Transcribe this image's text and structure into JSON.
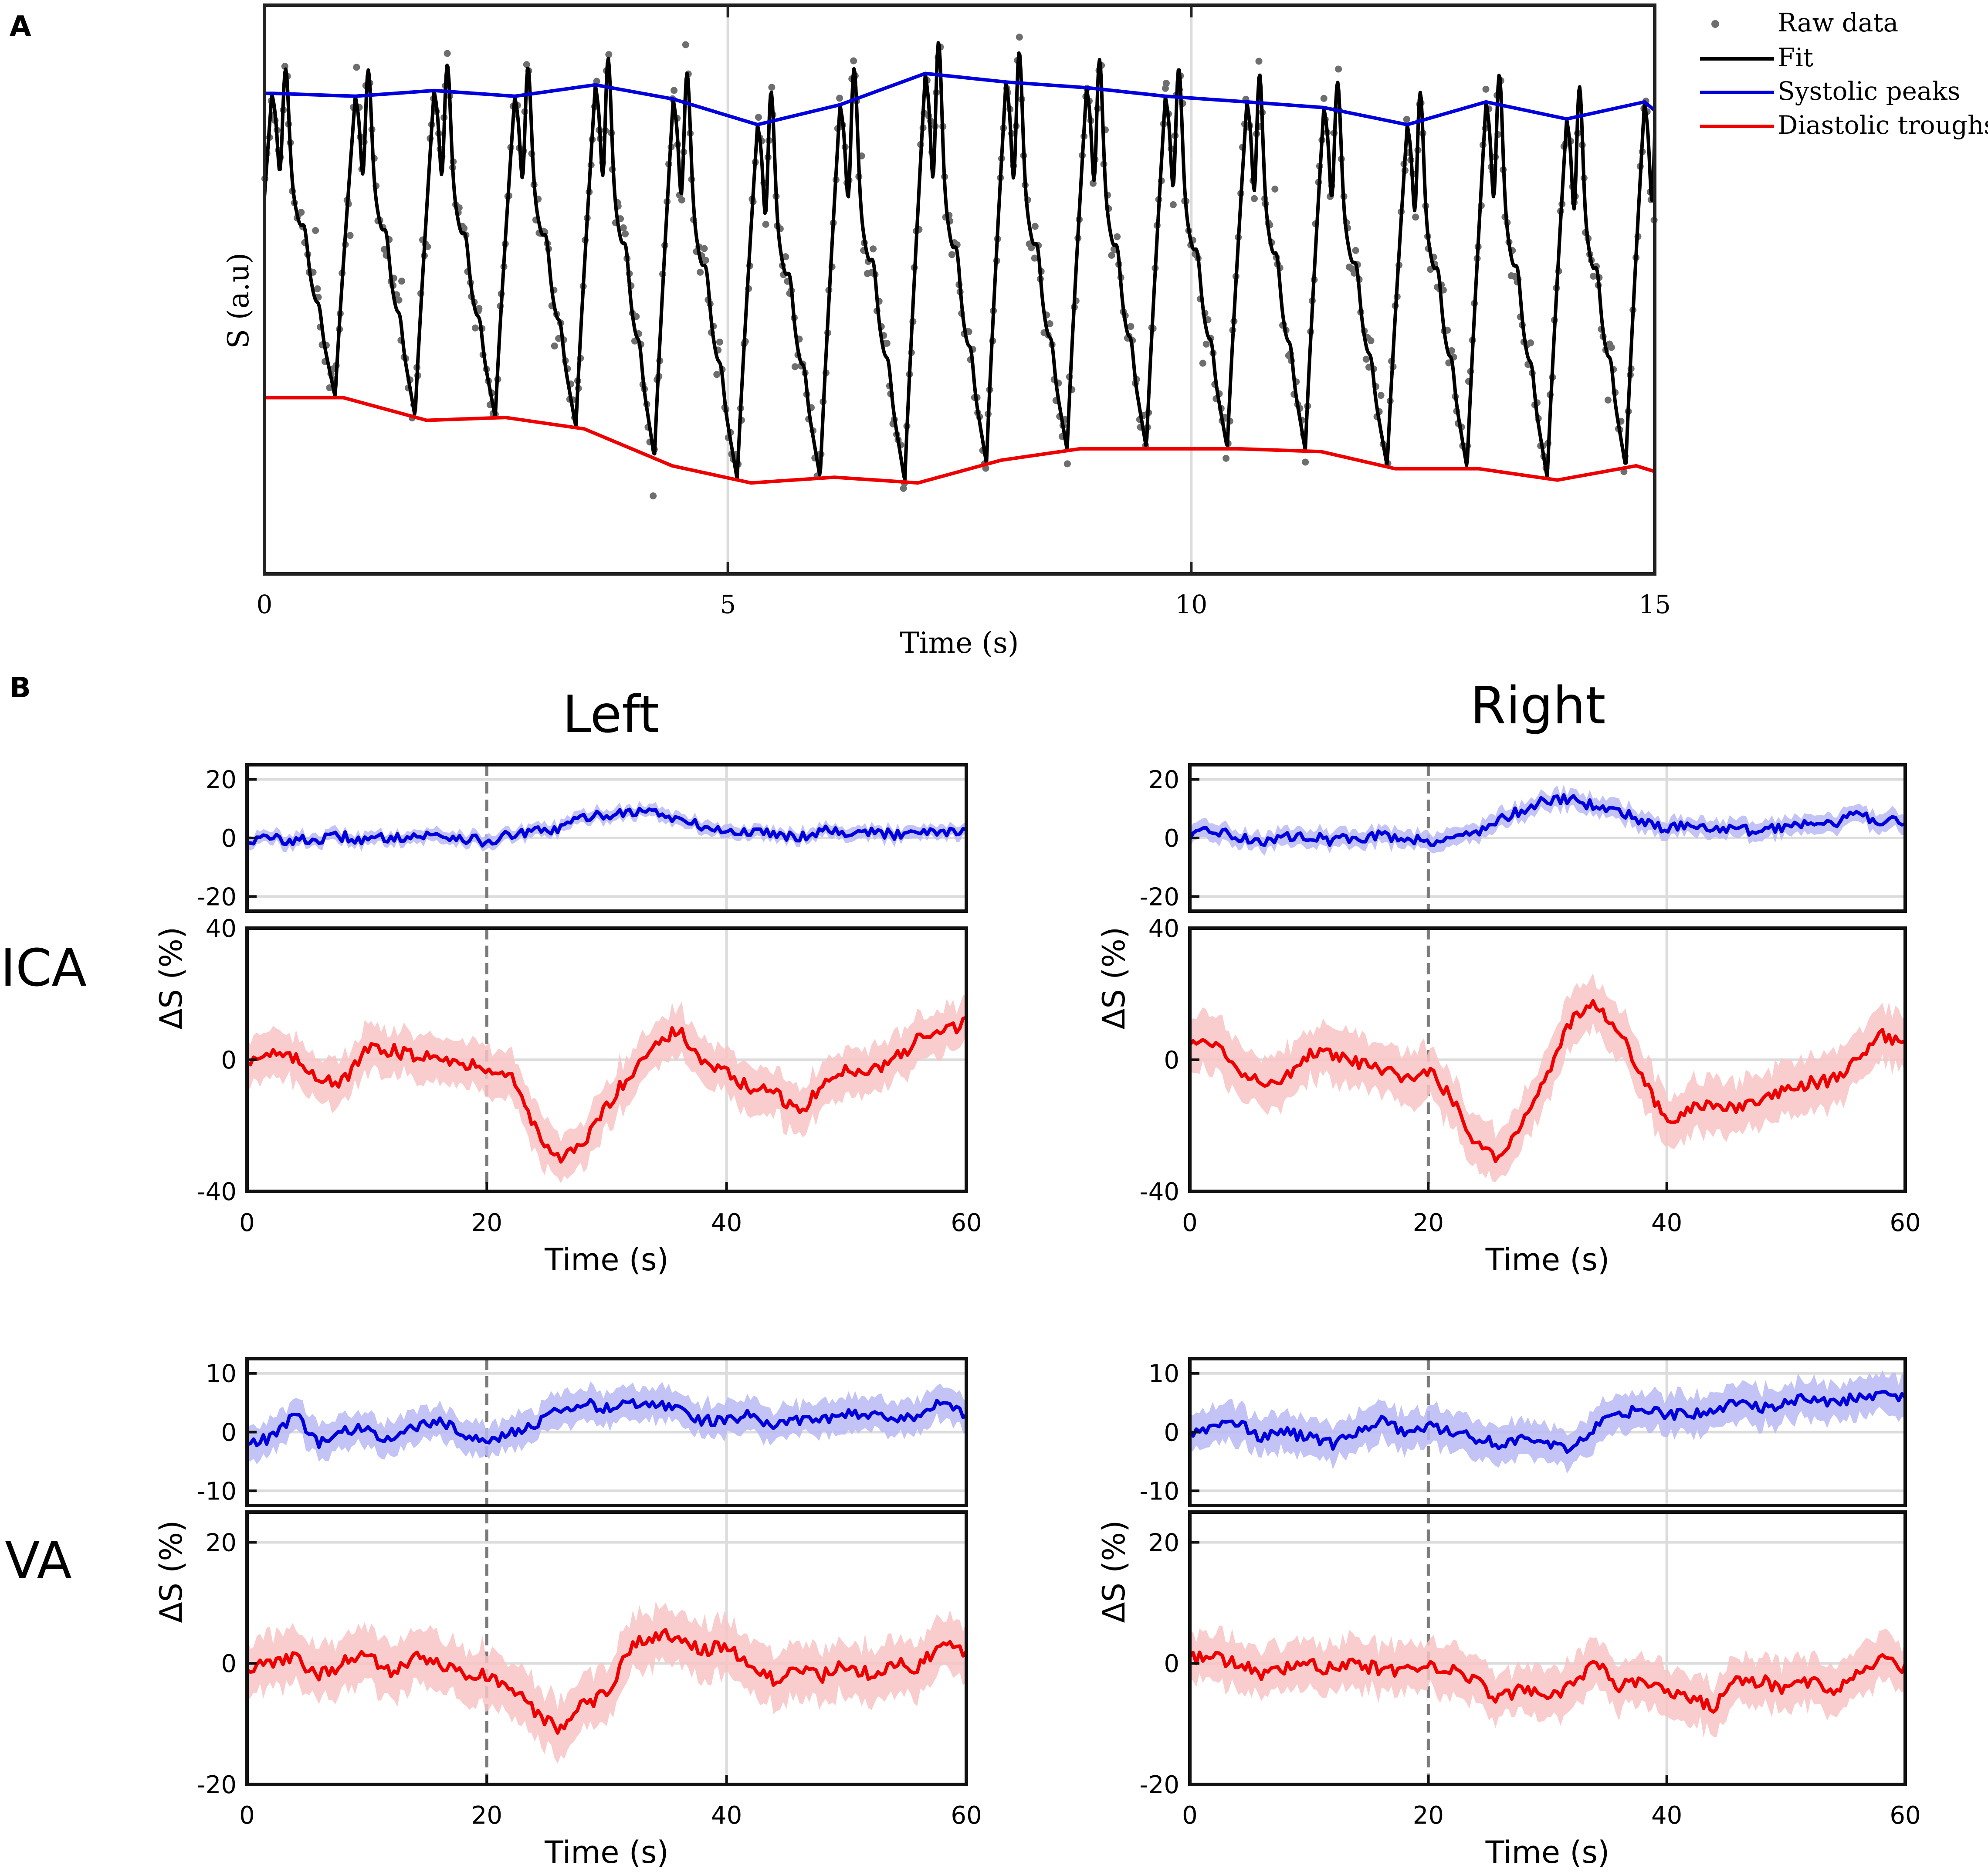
{
  "figure": {
    "panel_a_label": "A",
    "panel_b_label": "B",
    "column_left": "Left",
    "column_right": "Right",
    "row_ica": "ICA",
    "row_va": "VA"
  },
  "colors": {
    "raw": "#6e6e6e",
    "fit": "#000000",
    "systolic": "#0000dd",
    "diastolic": "#ee0000",
    "systolic_band": "#b8b8f4",
    "diastolic_band": "#f8c4c4",
    "grid": "#dcdcdc",
    "stim": "#7a7a7a"
  },
  "chart_data": [
    {
      "id": "A",
      "type": "line",
      "xlabel": "Time (s)",
      "ylabel": "S (a.u)",
      "xlim": [
        0,
        15
      ],
      "ylim": [
        0,
        1
      ],
      "xticks": [
        0,
        5,
        10,
        15
      ],
      "grid_x": [
        5,
        10
      ],
      "legend": {
        "placement": "outside-top-right",
        "entries": [
          "Raw data",
          "Fit",
          "Systolic peaks",
          "Diastolic troughs"
        ]
      },
      "waveform": {
        "beat_times": [
          0.08,
          0.98,
          1.83,
          2.7,
          3.57,
          4.41,
          5.32,
          6.21,
          7.13,
          8.0,
          8.87,
          9.72,
          10.6,
          11.43,
          12.33,
          13.18,
          14.05,
          14.89
        ],
        "diastolic_fraction": 0.76,
        "notch_amplitude": 0.14
      },
      "series": [
        {
          "name": "Systolic peaks",
          "x": [
            0,
            0.1,
            0.98,
            1.83,
            2.7,
            3.57,
            4.41,
            5.32,
            6.21,
            7.13,
            8.0,
            8.87,
            9.72,
            10.6,
            11.43,
            12.33,
            13.18,
            14.05,
            14.89,
            15
          ],
          "y": [
            0.845,
            0.845,
            0.84,
            0.85,
            0.84,
            0.86,
            0.835,
            0.79,
            0.825,
            0.88,
            0.865,
            0.855,
            0.84,
            0.83,
            0.82,
            0.79,
            0.83,
            0.8,
            0.83,
            0.815
          ]
        },
        {
          "name": "Diastolic troughs",
          "x": [
            0,
            0.85,
            1.75,
            2.6,
            3.45,
            4.4,
            5.25,
            6.15,
            7.05,
            7.95,
            8.8,
            9.7,
            10.5,
            11.4,
            12.2,
            13.1,
            13.95,
            14.8,
            15
          ],
          "y": [
            0.31,
            0.31,
            0.27,
            0.275,
            0.255,
            0.19,
            0.16,
            0.17,
            0.16,
            0.2,
            0.22,
            0.22,
            0.22,
            0.215,
            0.185,
            0.185,
            0.165,
            0.19,
            0.18
          ]
        }
      ]
    },
    {
      "id": "B-left-ICA-systolic",
      "type": "line",
      "column": "Left",
      "row": "ICA",
      "xlim": [
        0,
        60
      ],
      "ylim": [
        -25,
        25
      ],
      "yticks": [
        -20,
        0,
        20
      ],
      "xticks": [
        0,
        20,
        40,
        60
      ],
      "stimulus_x": 20,
      "band_halfwidth": 2.2,
      "series": [
        {
          "name": "Systolic",
          "x": [
            0,
            2,
            4,
            6,
            8,
            10,
            12,
            14,
            16,
            18,
            20,
            22,
            24,
            26,
            28,
            30,
            32,
            34,
            36,
            38,
            40,
            42,
            44,
            46,
            48,
            50,
            52,
            54,
            56,
            58,
            60
          ],
          "y": [
            -1,
            0,
            -1,
            -0.5,
            0.5,
            -1,
            0.5,
            0.5,
            1,
            0,
            -1.5,
            1,
            2,
            3,
            7,
            8,
            9,
            9,
            6,
            4,
            2,
            2,
            2,
            0,
            3,
            2,
            2,
            1,
            3,
            2,
            3
          ]
        }
      ]
    },
    {
      "id": "B-left-ICA-diastolic",
      "type": "line",
      "column": "Left",
      "row": "ICA",
      "xlabel": "Time (s)",
      "ylabel": "ΔS (%)",
      "xlim": [
        0,
        60
      ],
      "ylim": [
        -40,
        40
      ],
      "yticks": [
        -40,
        0,
        40
      ],
      "xticks": [
        0,
        20,
        40,
        60
      ],
      "stimulus_x": 20,
      "band_halfwidth": 7,
      "series": [
        {
          "name": "Diastolic",
          "x": [
            0,
            2,
            4,
            6,
            8,
            10,
            12,
            14,
            16,
            18,
            20,
            22,
            24,
            26,
            28,
            30,
            32,
            34,
            36,
            38,
            40,
            42,
            44,
            46,
            48,
            50,
            52,
            54,
            56,
            58,
            60
          ],
          "y": [
            0,
            2,
            0,
            -5,
            -7,
            3,
            3,
            1,
            2,
            -2,
            -2,
            -5,
            -20,
            -31,
            -26,
            -14,
            -4,
            5,
            9,
            -1,
            -4,
            -9,
            -10,
            -16,
            -8,
            -3,
            -3,
            0,
            6,
            9,
            11
          ]
        }
      ]
    },
    {
      "id": "B-right-ICA-systolic",
      "type": "line",
      "column": "Right",
      "row": "ICA",
      "xlim": [
        0,
        60
      ],
      "ylim": [
        -25,
        25
      ],
      "yticks": [
        -20,
        0,
        20
      ],
      "xticks": [
        0,
        20,
        40,
        60
      ],
      "stimulus_x": 20,
      "band_halfwidth": 3,
      "series": [
        {
          "name": "Systolic",
          "x": [
            0,
            2,
            4,
            6,
            8,
            10,
            12,
            14,
            16,
            18,
            20,
            22,
            24,
            26,
            28,
            30,
            32,
            34,
            36,
            38,
            40,
            42,
            44,
            46,
            48,
            50,
            52,
            54,
            56,
            58,
            60
          ],
          "y": [
            0,
            3,
            0,
            -1,
            0,
            1,
            -1,
            0,
            1,
            0,
            -1,
            0,
            2,
            6,
            10,
            13,
            13,
            11,
            9,
            6,
            3,
            5,
            3,
            3,
            2,
            4,
            6,
            5,
            8,
            6,
            5
          ]
        }
      ]
    },
    {
      "id": "B-right-ICA-diastolic",
      "type": "line",
      "column": "Right",
      "row": "ICA",
      "xlabel": "Time (s)",
      "ylabel": "ΔS (%)",
      "xlim": [
        0,
        60
      ],
      "ylim": [
        -40,
        40
      ],
      "yticks": [
        -40,
        0,
        40
      ],
      "xticks": [
        0,
        20,
        40,
        60
      ],
      "stimulus_x": 20,
      "band_halfwidth": 8,
      "series": [
        {
          "name": "Diastolic",
          "x": [
            0,
            2,
            4,
            6,
            8,
            10,
            12,
            14,
            16,
            18,
            20,
            22,
            24,
            26,
            28,
            30,
            32,
            34,
            36,
            38,
            40,
            42,
            44,
            46,
            48,
            50,
            52,
            54,
            56,
            58,
            60
          ],
          "y": [
            5,
            6,
            -3,
            -6,
            -6,
            2,
            1,
            -1,
            -3,
            -6,
            -3,
            -12,
            -25,
            -30,
            -18,
            -4,
            12,
            17,
            9,
            -6,
            -19,
            -15,
            -14,
            -15,
            -13,
            -9,
            -7,
            -6,
            0,
            8,
            4
          ]
        }
      ]
    },
    {
      "id": "B-left-VA-systolic",
      "type": "line",
      "column": "Left",
      "row": "VA",
      "xlim": [
        0,
        60
      ],
      "ylim": [
        -12.5,
        12.5
      ],
      "yticks": [
        -10,
        0,
        10
      ],
      "xticks": [
        0,
        20,
        40,
        60
      ],
      "stimulus_x": 20,
      "band_halfwidth": 2.8,
      "series": [
        {
          "name": "Systolic",
          "x": [
            0,
            2,
            4,
            6,
            8,
            10,
            12,
            14,
            16,
            18,
            20,
            22,
            24,
            26,
            28,
            30,
            32,
            34,
            36,
            38,
            40,
            42,
            44,
            46,
            48,
            50,
            52,
            54,
            56,
            58,
            60
          ],
          "y": [
            -2,
            -1,
            3,
            -2,
            0,
            1,
            -2,
            1,
            2,
            0,
            -2,
            0,
            1,
            4,
            5,
            4,
            5,
            5,
            4,
            2,
            2,
            3,
            1,
            2,
            2,
            3,
            3,
            2,
            3,
            5,
            3
          ]
        }
      ]
    },
    {
      "id": "B-left-VA-diastolic",
      "type": "line",
      "column": "Left",
      "row": "VA",
      "xlabel": "Time (s)",
      "ylabel": "ΔS (%)",
      "xlim": [
        0,
        60
      ],
      "ylim": [
        -20,
        25
      ],
      "yticks": [
        -20,
        0,
        20
      ],
      "xticks": [
        0,
        20,
        40,
        60
      ],
      "stimulus_x": 20,
      "band_halfwidth": 4.5,
      "series": [
        {
          "name": "Diastolic",
          "x": [
            0,
            2,
            4,
            6,
            8,
            10,
            12,
            14,
            16,
            18,
            20,
            22,
            24,
            26,
            28,
            30,
            32,
            34,
            36,
            38,
            40,
            42,
            44,
            46,
            48,
            50,
            52,
            54,
            56,
            58,
            60
          ],
          "y": [
            -1,
            0,
            1,
            -2,
            0,
            2,
            -2,
            1,
            0,
            -2,
            -2,
            -4,
            -8,
            -11,
            -7,
            -5,
            3,
            4,
            5,
            2,
            3,
            0,
            -3,
            -1,
            -2,
            0,
            -2,
            0,
            -1,
            4,
            1
          ]
        }
      ]
    },
    {
      "id": "B-right-VA-systolic",
      "type": "line",
      "column": "Right",
      "row": "VA",
      "xlim": [
        0,
        60
      ],
      "ylim": [
        -12.5,
        12.5
      ],
      "yticks": [
        -10,
        0,
        10
      ],
      "xticks": [
        0,
        20,
        40,
        60
      ],
      "stimulus_x": 20,
      "band_halfwidth": 3.2,
      "series": [
        {
          "name": "Systolic",
          "x": [
            0,
            2,
            4,
            6,
            8,
            10,
            12,
            14,
            16,
            18,
            20,
            22,
            24,
            26,
            28,
            30,
            32,
            34,
            36,
            38,
            40,
            42,
            44,
            46,
            48,
            50,
            52,
            54,
            56,
            58,
            60
          ],
          "y": [
            0,
            1,
            2,
            -1,
            0,
            -1,
            -2,
            0,
            2,
            0,
            1,
            0,
            -1,
            -2,
            -1,
            -2,
            -3,
            1,
            3,
            4,
            3,
            3,
            4,
            5,
            4,
            5,
            6,
            5,
            6,
            6,
            6
          ]
        }
      ]
    },
    {
      "id": "B-right-VA-diastolic",
      "type": "line",
      "column": "Right",
      "row": "VA",
      "xlabel": "Time (s)",
      "ylabel": "ΔS (%)",
      "xlim": [
        0,
        60
      ],
      "ylim": [
        -20,
        25
      ],
      "yticks": [
        -20,
        0,
        20
      ],
      "xticks": [
        0,
        20,
        40,
        60
      ],
      "stimulus_x": 20,
      "band_halfwidth": 4,
      "series": [
        {
          "name": "Diastolic",
          "x": [
            0,
            2,
            4,
            6,
            8,
            10,
            12,
            14,
            16,
            18,
            20,
            22,
            24,
            26,
            28,
            30,
            32,
            34,
            36,
            38,
            40,
            42,
            44,
            46,
            48,
            50,
            52,
            54,
            56,
            58,
            60
          ],
          "y": [
            1,
            1,
            0,
            -2,
            -1,
            0,
            -1,
            0,
            -1,
            -1,
            0,
            -1,
            -3,
            -6,
            -4,
            -5,
            -4,
            0,
            -4,
            -3,
            -5,
            -6,
            -7,
            -3,
            -3,
            -4,
            -3,
            -5,
            -2,
            1,
            -1
          ]
        }
      ]
    }
  ]
}
